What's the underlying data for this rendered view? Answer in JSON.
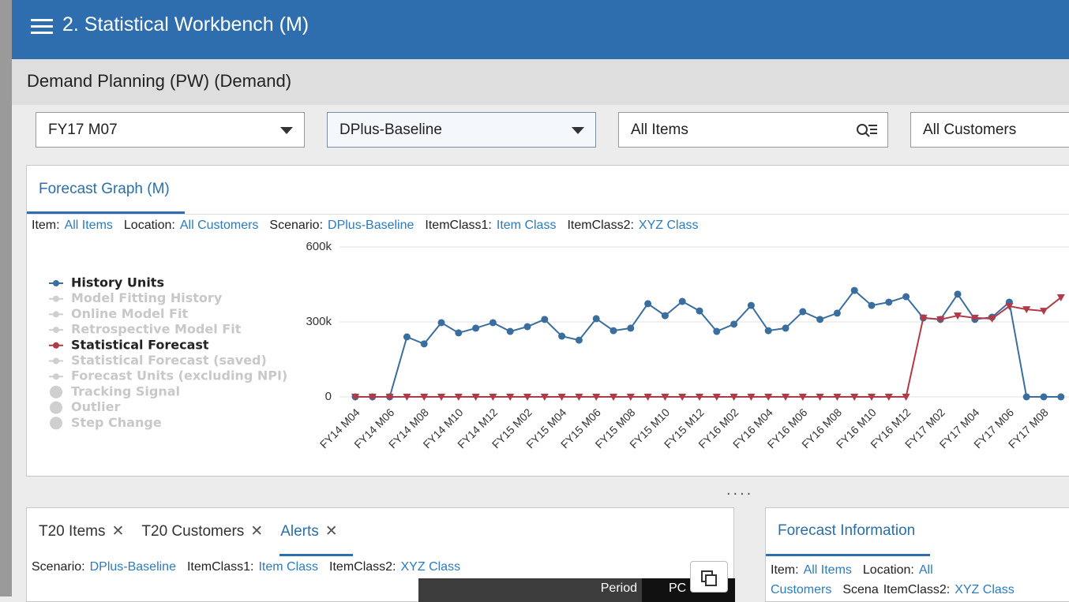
{
  "header": {
    "title": "2. Statistical Workbench (M)"
  },
  "subheader": {
    "title": "Demand Planning (PW) (Demand)"
  },
  "filters": [
    "FY17 M07",
    "DPlus-Baseline",
    "All Items",
    "All Customers"
  ],
  "forecast_panel": {
    "tab": "Forecast Graph (M)",
    "context": [
      {
        "label": "Item:",
        "value": "All Items"
      },
      {
        "label": "Location:",
        "value": "All Customers"
      },
      {
        "label": "Scenario:",
        "value": "DPlus-Baseline"
      },
      {
        "label": "ItemClass1:",
        "value": "Item Class"
      },
      {
        "label": "ItemClass2:",
        "value": "XYZ Class"
      }
    ],
    "chart_data": {
      "type": "line",
      "categories": [
        "FY14 M04",
        null,
        "FY14 M06",
        null,
        "FY14 M08",
        null,
        "FY14 M10",
        null,
        "FY14 M12",
        null,
        "FY15 M02",
        null,
        "FY15 M04",
        null,
        "FY15 M06",
        null,
        "FY15 M08",
        null,
        "FY15 M10",
        null,
        "FY15 M12",
        null,
        "FY16 M02",
        null,
        "FY16 M04",
        null,
        "FY16 M06",
        null,
        "FY16 M08",
        null,
        "FY16 M10",
        null,
        "FY16 M12",
        null,
        "FY17 M02",
        null,
        "FY17 M04",
        null,
        "FY17 M06",
        null,
        "FY17 M08",
        null
      ],
      "series": [
        {
          "name": "History Units",
          "color": "#3a6e9e",
          "values": [
            0,
            0,
            0,
            240000,
            212000,
            297000,
            256000,
            275000,
            297000,
            262000,
            281000,
            310000,
            243000,
            227000,
            313000,
            265000,
            275000,
            373000,
            325000,
            382000,
            344000,
            262000,
            291000,
            366000,
            265000,
            275000,
            341000,
            310000,
            335000,
            426000,
            366000,
            379000,
            401000,
            316000,
            310000,
            411000,
            310000,
            319000,
            379000,
            0,
            0,
            0
          ]
        },
        {
          "name": "Statistical Forecast",
          "color": "#b03a48",
          "values": [
            0,
            0,
            0,
            0,
            0,
            0,
            0,
            0,
            0,
            0,
            0,
            0,
            0,
            0,
            0,
            0,
            0,
            0,
            0,
            0,
            0,
            0,
            0,
            0,
            0,
            0,
            0,
            0,
            0,
            0,
            0,
            0,
            0,
            316000,
            310000,
            325000,
            316000,
            313000,
            363000,
            350000,
            344000,
            398000
          ]
        }
      ],
      "other_legend_items": [
        "Model Fitting History",
        "Online Model Fit",
        "Retrospective Model Fit",
        "Statistical Forecast (saved)",
        "Forecast Units (excluding NPI)",
        "Tracking Signal",
        "Outlier",
        "Step Change"
      ],
      "ylim": [
        0,
        600000
      ],
      "yticks": [
        0,
        {
          "value": 300000,
          "label": "300k"
        },
        {
          "value": 600000,
          "label": "600k"
        }
      ],
      "grid": true
    }
  },
  "bottom_left": {
    "tabs": [
      "T20 Items",
      "T20 Customers",
      "Alerts"
    ],
    "context": [
      {
        "label": "Scenario:",
        "value": "DPlus-Baseline"
      },
      {
        "label": "ItemClass1:",
        "value": "Item Class"
      },
      {
        "label": "ItemClass2:",
        "value": "XYZ Class"
      }
    ],
    "columns": [
      "Period",
      "PC"
    ]
  },
  "bottom_right": {
    "tab": "Forecast Information",
    "context": [
      {
        "label": "Item:",
        "value": "All Items"
      },
      {
        "label": "Location:",
        "value": "All Customers"
      },
      {
        "label": "Scena",
        "value": null
      },
      {
        "label": "ItemClass2:",
        "value": "XYZ Class"
      }
    ]
  }
}
